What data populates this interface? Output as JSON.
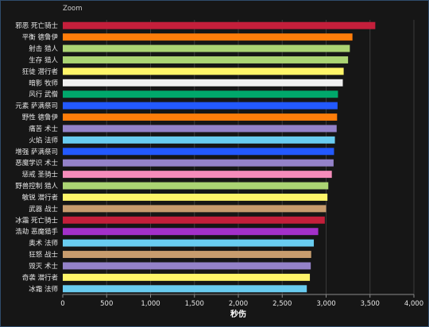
{
  "chart_data": {
    "type": "bar",
    "orientation": "horizontal",
    "zoom_label": "Zoom",
    "xlabel": "秒伤",
    "xlim": [
      0,
      4000
    ],
    "xticks": [
      0,
      500,
      1000,
      1500,
      2000,
      2500,
      3000,
      3500,
      4000
    ],
    "xtick_labels": [
      "0",
      "500",
      "1,000",
      "1,500",
      "2,000",
      "2,500",
      "3,000",
      "3,500",
      "4,000"
    ],
    "grid": true,
    "categories": [
      "邪恶 死亡骑士",
      "平衡 德鲁伊",
      "射击 猎人",
      "生存 猎人",
      "狂徒 潜行者",
      "暗影 牧师",
      "风行 武僧",
      "元素 萨满祭司",
      "野性 德鲁伊",
      "痛苦 术士",
      "火焰 法师",
      "增强 萨满祭司",
      "恶魔学识 术士",
      "惩戒 圣骑士",
      "野兽控制 猎人",
      "敏锐 潜行者",
      "武器 战士",
      "冰霜 死亡骑士",
      "浩劫 恶魔猎手",
      "奥术 法师",
      "狂怒 战士",
      "毁灭 术士",
      "奇袭 潜行者",
      "冰霜 法师"
    ],
    "values": [
      3560,
      3300,
      3270,
      3250,
      3200,
      3190,
      3135,
      3130,
      3125,
      3120,
      3100,
      3090,
      3085,
      3065,
      3025,
      3015,
      3000,
      2985,
      2910,
      2860,
      2830,
      2825,
      2815,
      2780
    ],
    "colors": [
      "#c41f3b",
      "#ff7d0a",
      "#abd473",
      "#abd473",
      "#fff569",
      "#f0f0f0",
      "#00a86b",
      "#2359ff",
      "#ff7d0a",
      "#9482c9",
      "#69ccf0",
      "#2359ff",
      "#9482c9",
      "#f58cba",
      "#abd473",
      "#fff569",
      "#c79c6e",
      "#c41f3b",
      "#a330c9",
      "#69ccf0",
      "#c79c6e",
      "#9482c9",
      "#fff569",
      "#69ccf0"
    ]
  }
}
